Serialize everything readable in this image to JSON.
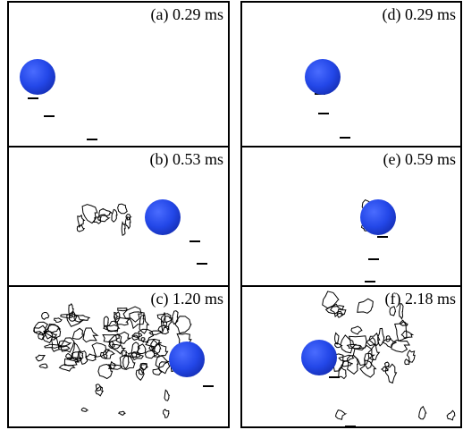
{
  "panels": [
    {
      "label": "(a) 0.29 ms"
    },
    {
      "label": "(b) 0.53 ms"
    },
    {
      "label": "(c) 1.20 ms"
    },
    {
      "label": "(d) 0.29 ms"
    },
    {
      "label": "(e) 0.59 ms"
    },
    {
      "label": "(f) 2.18 ms"
    }
  ]
}
